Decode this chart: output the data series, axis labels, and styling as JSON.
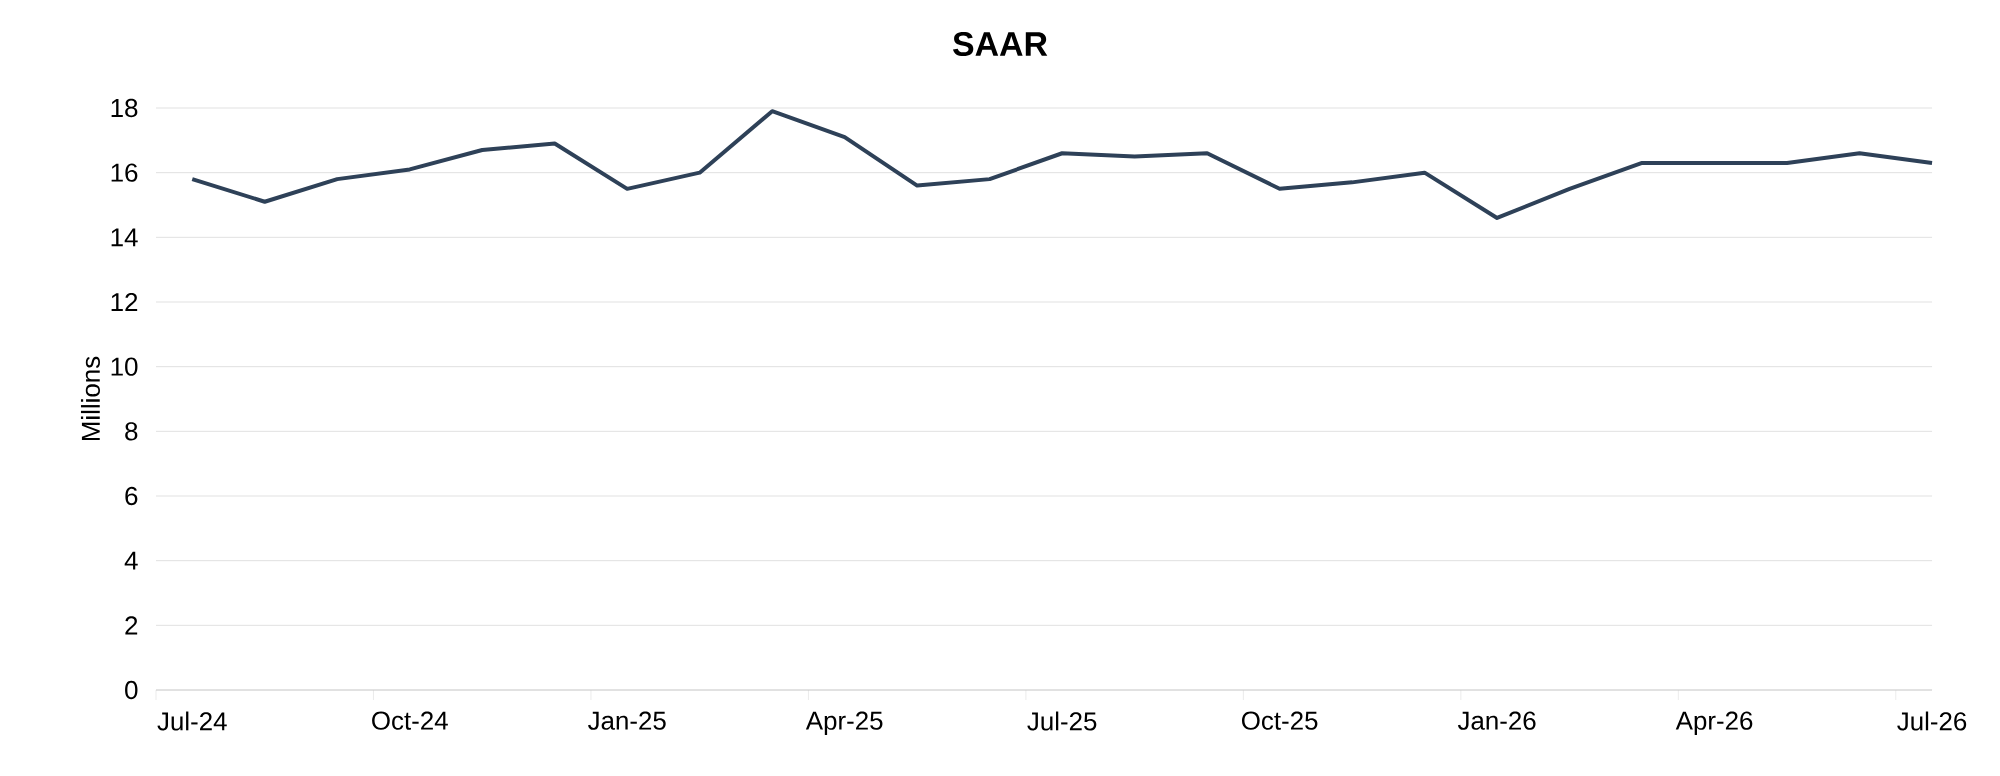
{
  "chart_data": {
    "type": "line",
    "title": "SAAR",
    "ylabel": "Millions",
    "categories": [
      "Jul-24",
      null,
      null,
      "Oct-24",
      null,
      null,
      "Jan-25",
      null,
      null,
      "Apr-25",
      null,
      null,
      "Jul-25",
      null,
      null,
      "Oct-25",
      null,
      null,
      "Jan-26",
      null,
      null,
      "Apr-26",
      null,
      null,
      "Jul-26"
    ],
    "values": [
      15.8,
      15.1,
      15.8,
      16.1,
      16.7,
      16.9,
      15.5,
      16.0,
      17.9,
      17.1,
      15.6,
      15.8,
      16.6,
      16.5,
      16.6,
      15.5,
      15.7,
      16.0,
      14.6,
      15.5,
      16.3,
      16.3,
      16.3,
      16.6,
      16.3
    ],
    "color": "#2e4158",
    "ylim": [
      0,
      18
    ],
    "yticks": [
      0,
      2,
      4,
      6,
      8,
      10,
      12,
      14,
      16,
      18
    ],
    "grid": "y"
  }
}
